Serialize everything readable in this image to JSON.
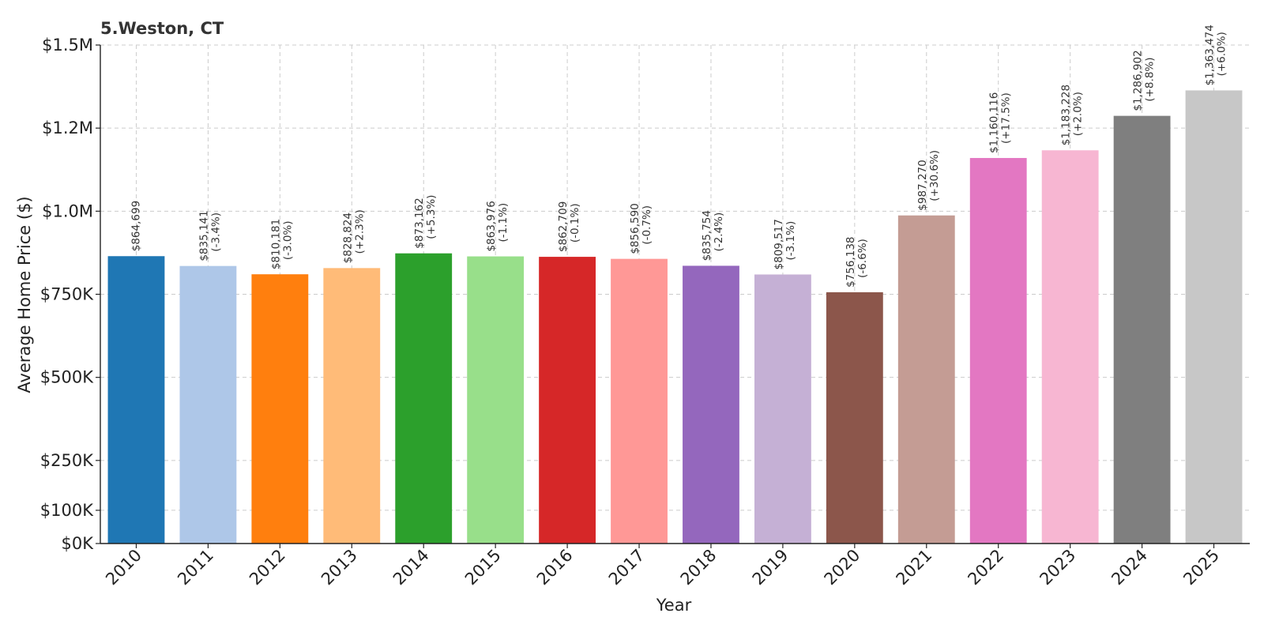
{
  "chart_data": {
    "type": "bar",
    "title": "5.Weston, CT",
    "xlabel": "Year",
    "ylabel": "Average Home Price ($)",
    "ylim": [
      0,
      1500000
    ],
    "grid": true,
    "categories": [
      "2010",
      "2011",
      "2012",
      "2013",
      "2014",
      "2015",
      "2016",
      "2017",
      "2018",
      "2019",
      "2020",
      "2021",
      "2022",
      "2023",
      "2024",
      "2025"
    ],
    "values": [
      864699,
      835141,
      810181,
      828824,
      873162,
      863976,
      862709,
      856590,
      835754,
      809517,
      756138,
      987270,
      1160116,
      1183228,
      1286902,
      1363474
    ],
    "value_labels": [
      "$864,699",
      "$835,141",
      "$810,181",
      "$828,824",
      "$873,162",
      "$863,976",
      "$862,709",
      "$856,590",
      "$835,754",
      "$809,517",
      "$756,138",
      "$987,270",
      "$1,160,116",
      "$1,183,228",
      "$1,286,902",
      "$1,363,474"
    ],
    "change_labels": [
      "",
      "(-3.4%)",
      "(-3.0%)",
      "(+2.3%)",
      "(+5.3%)",
      "(-1.1%)",
      "(-0.1%)",
      "(-0.7%)",
      "(-2.4%)",
      "(-3.1%)",
      "(-6.6%)",
      "(+30.6%)",
      "(+17.5%)",
      "(+2.0%)",
      "(+8.8%)",
      "(+6.0%)"
    ],
    "colors": [
      "#1f77b4",
      "#aec7e8",
      "#ff7f0e",
      "#ffbb78",
      "#2ca02c",
      "#98df8a",
      "#d62728",
      "#ff9896",
      "#9467bd",
      "#c5b0d5",
      "#8c564b",
      "#c49c94",
      "#e377c2",
      "#f7b6d2",
      "#7f7f7f",
      "#c7c7c7"
    ],
    "yticks": [
      {
        "value": 0,
        "label": "$0K"
      },
      {
        "value": 100000,
        "label": "$100K"
      },
      {
        "value": 250000,
        "label": "$250K"
      },
      {
        "value": 500000,
        "label": "$500K"
      },
      {
        "value": 750000,
        "label": "$750K"
      },
      {
        "value": 1000000,
        "label": "$1.0M"
      },
      {
        "value": 1250000,
        "label": "$1.2M"
      },
      {
        "value": 1500000,
        "label": "$1.5M"
      }
    ]
  }
}
